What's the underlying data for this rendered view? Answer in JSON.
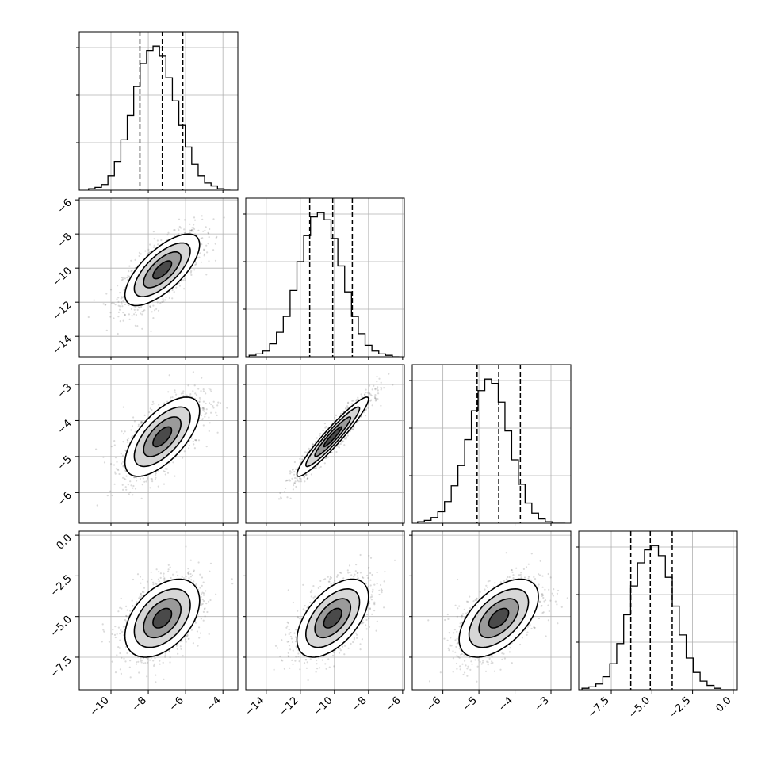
{
  "chart_data": {
    "type": "corner",
    "parameters": [
      {
        "name": "",
        "quantiles": [
          -8.45,
          -7.25,
          -6.15
        ],
        "range": [
          -11.7,
          -3.2
        ],
        "ticks": [
          -10,
          -8,
          -6,
          -4
        ],
        "tick_labels": [
          "−10",
          "−8",
          "−6",
          "−4"
        ]
      },
      {
        "name": "",
        "quantiles": [
          -11.45,
          -10.1,
          -8.95
        ],
        "range": [
          -15.2,
          -5.9
        ],
        "ticks": [
          -14,
          -12,
          -10,
          -8,
          -6
        ],
        "tick_labels": [
          "−14",
          "−12",
          "−10",
          "−8",
          "−6"
        ]
      },
      {
        "name": "",
        "quantiles": [
          -5.05,
          -4.45,
          -3.85
        ],
        "range": [
          -6.85,
          -2.45
        ],
        "ticks": [
          -6,
          -5,
          -4,
          -3
        ],
        "tick_labels": [
          "−6",
          "−5",
          "−4",
          "−3"
        ]
      },
      {
        "name": "",
        "quantiles": [
          -6.3,
          -5.1,
          -3.75
        ],
        "range": [
          -9.5,
          0.25
        ],
        "ticks": [
          -7.5,
          -5.0,
          -2.5,
          0.0
        ],
        "tick_labels": [
          "−7.5",
          "−5.0",
          "−2.5",
          "0.0"
        ]
      }
    ],
    "marginals": [
      {
        "bin_edges_range": [
          -11.2,
          -3.6
        ],
        "counts": [
          1,
          2,
          4,
          10,
          20,
          35,
          52,
          72,
          88,
          97,
          100,
          93,
          78,
          62,
          45,
          30,
          18,
          10,
          5,
          3,
          1,
          0
        ]
      },
      {
        "bin_edges_range": [
          -15.0,
          -6.2
        ],
        "counts": [
          1,
          2,
          4,
          9,
          17,
          28,
          46,
          66,
          84,
          97,
          100,
          95,
          82,
          63,
          45,
          28,
          16,
          8,
          4,
          2,
          1,
          0
        ]
      },
      {
        "bin_edges_range": [
          -6.7,
          -2.6
        ],
        "counts": [
          1,
          2,
          4,
          8,
          15,
          26,
          40,
          58,
          78,
          92,
          100,
          97,
          84,
          64,
          44,
          27,
          14,
          7,
          3,
          1,
          0,
          0
        ]
      },
      {
        "bin_edges_range": [
          -9.3,
          0.1
        ],
        "counts": [
          1,
          2,
          4,
          9,
          18,
          32,
          52,
          72,
          88,
          97,
          100,
          93,
          78,
          58,
          38,
          22,
          12,
          6,
          3,
          1,
          0,
          0
        ]
      }
    ],
    "pairs": [
      {
        "row": 1,
        "col": 0,
        "center": [
          -7.25,
          -10.1
        ],
        "sigma": [
          1.0,
          1.05
        ],
        "rho": 0.7
      },
      {
        "row": 2,
        "col": 0,
        "center": [
          -7.25,
          -4.45
        ],
        "sigma": [
          1.0,
          0.55
        ],
        "rho": 0.65
      },
      {
        "row": 2,
        "col": 1,
        "center": [
          -10.1,
          -4.45
        ],
        "sigma": [
          1.05,
          0.55
        ],
        "rho": 0.95
      },
      {
        "row": 3,
        "col": 0,
        "center": [
          -7.25,
          -5.1
        ],
        "sigma": [
          1.0,
          1.2
        ],
        "rho": 0.45
      },
      {
        "row": 3,
        "col": 1,
        "center": [
          -10.1,
          -5.1
        ],
        "sigma": [
          1.05,
          1.2
        ],
        "rho": 0.55
      },
      {
        "row": 3,
        "col": 2,
        "center": [
          -4.45,
          -5.1
        ],
        "sigma": [
          0.55,
          1.2
        ],
        "rho": 0.55
      }
    ],
    "grid": true,
    "contour_levels_sigma": [
      0.5,
      1.0,
      1.5,
      2.0
    ]
  }
}
